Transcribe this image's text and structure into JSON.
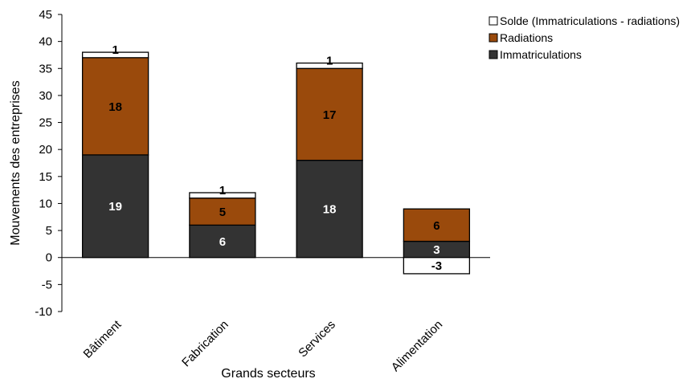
{
  "chart_data": {
    "type": "bar",
    "stacked": true,
    "categories": [
      "Bâtiment",
      "Fabrication",
      "Services",
      "Alimentation"
    ],
    "series": [
      {
        "name": "Immatriculations",
        "values": [
          19,
          6,
          18,
          3
        ],
        "color": "#333333",
        "label_color": "#ffffff"
      },
      {
        "name": "Radiations",
        "values": [
          18,
          5,
          17,
          6
        ],
        "color": "#9a4a0c",
        "label_color": "#000000"
      },
      {
        "name": "Solde (Immatriculations - radiations)",
        "values": [
          1,
          1,
          1,
          -3
        ],
        "color": "#ffffff",
        "label_color": "#000000"
      }
    ],
    "xlabel": "Grands secteurs",
    "ylabel": "Mouvements des entreprises",
    "ylim": [
      -10,
      45
    ],
    "yticks": [
      -10,
      -5,
      0,
      5,
      10,
      15,
      20,
      25,
      30,
      35,
      40,
      45
    ],
    "grid": false,
    "legend_position": "top-right",
    "legend_order": [
      "Solde (Immatriculations - radiations)",
      "Radiations",
      "Immatriculations"
    ]
  }
}
